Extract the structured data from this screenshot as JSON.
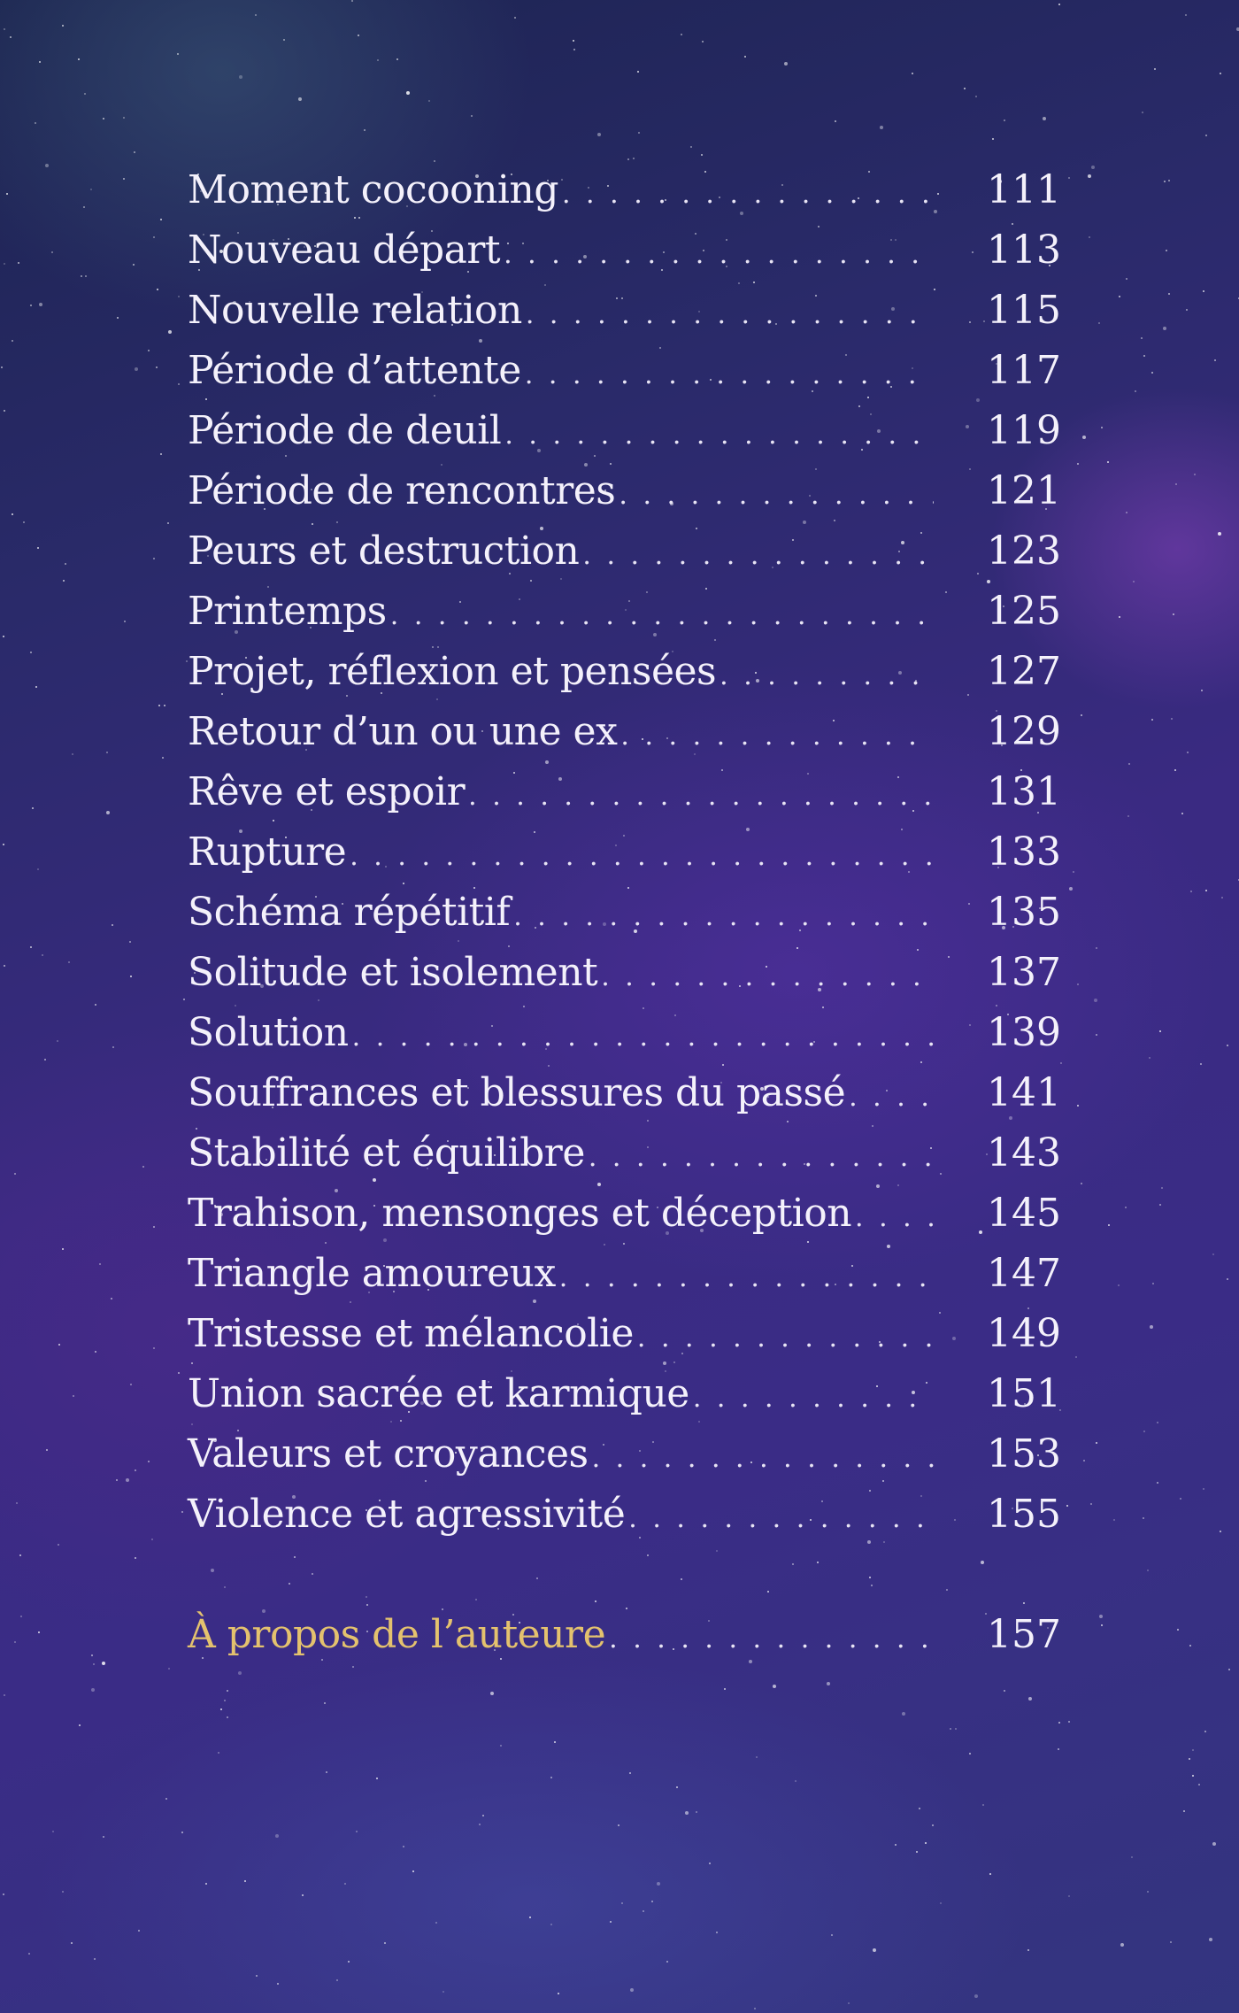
{
  "toc": {
    "entries": [
      {
        "title": "Moment cocooning",
        "page": "111"
      },
      {
        "title": "Nouveau départ",
        "page": "113"
      },
      {
        "title": "Nouvelle relation",
        "page": "115"
      },
      {
        "title": "Période d’attente",
        "page": "117"
      },
      {
        "title": "Période de deuil",
        "page": "119"
      },
      {
        "title": "Période de rencontres",
        "page": "121"
      },
      {
        "title": "Peurs et destruction",
        "page": "123"
      },
      {
        "title": "Printemps",
        "page": "125"
      },
      {
        "title": "Projet, réflexion et pensées",
        "page": "127"
      },
      {
        "title": "Retour d’un ou une ex",
        "page": "129"
      },
      {
        "title": "Rêve et espoir",
        "page": "131"
      },
      {
        "title": "Rupture",
        "page": "133"
      },
      {
        "title": "Schéma répétitif",
        "page": "135"
      },
      {
        "title": "Solitude et isolement",
        "page": "137"
      },
      {
        "title": "Solution",
        "page": "139"
      },
      {
        "title": "Souffrances et blessures du passé",
        "page": "141"
      },
      {
        "title": "Stabilité et équilibre",
        "page": "143"
      },
      {
        "title": "Trahison, mensonges et déception",
        "page": "145"
      },
      {
        "title": "Triangle amoureux",
        "page": "147"
      },
      {
        "title": "Tristesse et mélancolie",
        "page": "149"
      },
      {
        "title": "Union sacrée et karmique",
        "page": "151"
      },
      {
        "title": "Valeurs et croyances",
        "page": "153"
      },
      {
        "title": "Violence et agressivité",
        "page": "155"
      }
    ],
    "author_entry": {
      "title": "À propos de l’auteure",
      "page": "157"
    }
  },
  "colors": {
    "text": "#f4f1fb",
    "author_title": "#e4c26e",
    "background": "#3a2a82"
  }
}
